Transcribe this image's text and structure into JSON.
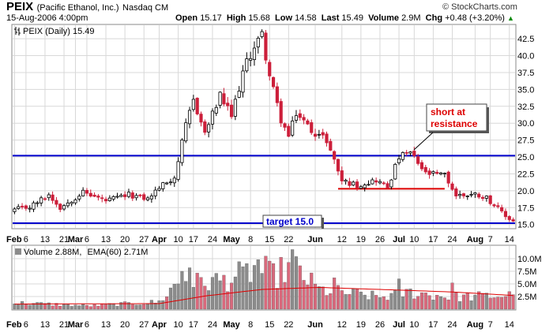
{
  "header": {
    "ticker": "PEIX",
    "company": "(Pacific Ethanol, Inc.)",
    "exchange": "Nasdaq CM",
    "date_time": "15-Aug-2006 4:00pm",
    "open_label": "Open",
    "open": "15.17",
    "high_label": "High",
    "high": "15.68",
    "low_label": "Low",
    "low": "14.58",
    "last_label": "Last",
    "last": "15.49",
    "volume_label": "Volume",
    "volume": "2.9M",
    "chg_label": "Chg",
    "chg": "+0.48 (+3.20%)",
    "chg_icon": "up-triangle-icon",
    "brand": "© StockCharts.com"
  },
  "price_panel": {
    "legend": "PEIX (Daily) 15.49"
  },
  "volume_panel": {
    "legend_prefix": "Volume 2.88M,",
    "legend_ema": "EMA(60) 2.71M"
  },
  "annotations": {
    "short": [
      "short at",
      "resistance"
    ],
    "target": "target 15.0"
  },
  "colors": {
    "up": "#ffffff",
    "down": "#cc1f3a",
    "vol_up": "#8c8c8c",
    "vol_down": "#d9697c",
    "ema": "#dd0000",
    "blue_line": "#0000cc",
    "red_line": "#dd0000",
    "grid": "#d8d8d8"
  },
  "chart_data": [
    {
      "type": "candlestick",
      "title": "PEIX (Daily) 15.49",
      "ylim": [
        14.5,
        44.5
      ],
      "y_ticks": [
        15,
        17.5,
        20,
        22.5,
        25,
        27.5,
        30,
        32.5,
        35,
        37.5,
        40,
        42.5
      ],
      "y_tick_labels": [
        "15.0",
        "17.5",
        "20.0",
        "22.5",
        "25.0",
        "27.5",
        "30.0",
        "32.5",
        "35.0",
        "37.5",
        "40.0",
        "42.5"
      ],
      "x_ticks": [
        {
          "label": "Feb",
          "idx": 0,
          "bold": true
        },
        {
          "label": "6",
          "idx": 3,
          "bold": false
        },
        {
          "label": "13",
          "idx": 8,
          "bold": false
        },
        {
          "label": "21",
          "idx": 13,
          "bold": false
        },
        {
          "label": "Mar",
          "idx": 16,
          "bold": true
        },
        {
          "label": "6",
          "idx": 19,
          "bold": false
        },
        {
          "label": "13",
          "idx": 24,
          "bold": false
        },
        {
          "label": "20",
          "idx": 29,
          "bold": false
        },
        {
          "label": "27",
          "idx": 34,
          "bold": false
        },
        {
          "label": "Apr",
          "idx": 38,
          "bold": true
        },
        {
          "label": "10",
          "idx": 43,
          "bold": false
        },
        {
          "label": "17",
          "idx": 47,
          "bold": false
        },
        {
          "label": "24",
          "idx": 52,
          "bold": false
        },
        {
          "label": "May",
          "idx": 57,
          "bold": true
        },
        {
          "label": "8",
          "idx": 62,
          "bold": false
        },
        {
          "label": "15",
          "idx": 67,
          "bold": false
        },
        {
          "label": "22",
          "idx": 72,
          "bold": false
        },
        {
          "label": "Jun",
          "idx": 79,
          "bold": true
        },
        {
          "label": "12",
          "idx": 86,
          "bold": false
        },
        {
          "label": "19",
          "idx": 91,
          "bold": false
        },
        {
          "label": "26",
          "idx": 96,
          "bold": false
        },
        {
          "label": "Jul",
          "idx": 101,
          "bold": true
        },
        {
          "label": "10",
          "idx": 105,
          "bold": false
        },
        {
          "label": "17",
          "idx": 110,
          "bold": false
        },
        {
          "label": "24",
          "idx": 115,
          "bold": false
        },
        {
          "label": "Aug",
          "idx": 121,
          "bold": true
        },
        {
          "label": "7",
          "idx": 125,
          "bold": false
        },
        {
          "label": "14",
          "idx": 130,
          "bold": false
        }
      ],
      "bar_count": 132,
      "lines": [
        {
          "kind": "horizontal",
          "y": 25.2,
          "from_idx": 0,
          "to_idx": 131,
          "color": "#0000cc"
        },
        {
          "kind": "horizontal",
          "y": 15.2,
          "from_idx": 0,
          "to_idx": 131,
          "color": "#0000cc"
        },
        {
          "kind": "horizontal",
          "y": 20.3,
          "from_idx": 85,
          "to_idx": 113,
          "color": "#dd0000"
        }
      ],
      "anchors": [
        {
          "idx": 0,
          "close": 17.2
        },
        {
          "idx": 4,
          "close": 17.6
        },
        {
          "idx": 9,
          "close": 19.4
        },
        {
          "idx": 12,
          "close": 17.5
        },
        {
          "idx": 18,
          "close": 19.8
        },
        {
          "idx": 24,
          "close": 18.5
        },
        {
          "idx": 30,
          "close": 19.4
        },
        {
          "idx": 35,
          "close": 18.8
        },
        {
          "idx": 38,
          "close": 20.5
        },
        {
          "idx": 42,
          "close": 22.0
        },
        {
          "idx": 45,
          "close": 29.5
        },
        {
          "idx": 47,
          "close": 33.5
        },
        {
          "idx": 50,
          "close": 28.5
        },
        {
          "idx": 54,
          "close": 34.0
        },
        {
          "idx": 57,
          "close": 31.0
        },
        {
          "idx": 60,
          "close": 37.5
        },
        {
          "idx": 63,
          "close": 41.5
        },
        {
          "idx": 65,
          "close": 43.0
        },
        {
          "idx": 67,
          "close": 37.0
        },
        {
          "idx": 70,
          "close": 30.5
        },
        {
          "idx": 72,
          "close": 28.0
        },
        {
          "idx": 74,
          "close": 31.5
        },
        {
          "idx": 78,
          "close": 29.0
        },
        {
          "idx": 82,
          "close": 27.5
        },
        {
          "idx": 86,
          "close": 21.5
        },
        {
          "idx": 90,
          "close": 20.8
        },
        {
          "idx": 95,
          "close": 21.6
        },
        {
          "idx": 98,
          "close": 20.5
        },
        {
          "idx": 101,
          "close": 25.0
        },
        {
          "idx": 104,
          "close": 25.6
        },
        {
          "idx": 108,
          "close": 22.5
        },
        {
          "idx": 113,
          "close": 22.3
        },
        {
          "idx": 116,
          "close": 19.3
        },
        {
          "idx": 121,
          "close": 19.5
        },
        {
          "idx": 124,
          "close": 19.0
        },
        {
          "idx": 129,
          "close": 16.2
        },
        {
          "idx": 131,
          "close": 15.49
        }
      ]
    },
    {
      "type": "bar",
      "title": "Volume 2.88M, EMA(60) 2.71M",
      "ylim": [
        0,
        12.5
      ],
      "y_ticks": [
        2.5,
        5.0,
        7.5,
        10.0
      ],
      "y_tick_labels": [
        "2.5M",
        "5.0M",
        "7.5M",
        "10.0M"
      ],
      "series": [
        {
          "name": "Volume",
          "unit": "M",
          "note": "daily volume bars, values approximated"
        },
        {
          "name": "EMA(60)",
          "unit": "M",
          "last": 2.71
        }
      ],
      "volume_anchors": [
        {
          "idx": 0,
          "v": 1.3
        },
        {
          "idx": 20,
          "v": 0.7
        },
        {
          "idx": 38,
          "v": 1.5
        },
        {
          "idx": 44,
          "v": 6.5
        },
        {
          "idx": 48,
          "v": 5.5
        },
        {
          "idx": 55,
          "v": 6.0
        },
        {
          "idx": 63,
          "v": 8.0
        },
        {
          "idx": 68,
          "v": 7.0
        },
        {
          "idx": 73,
          "v": 9.0
        },
        {
          "idx": 80,
          "v": 4.0
        },
        {
          "idx": 86,
          "v": 3.5
        },
        {
          "idx": 96,
          "v": 2.5
        },
        {
          "idx": 104,
          "v": 3.5
        },
        {
          "idx": 115,
          "v": 2.5
        },
        {
          "idx": 131,
          "v": 2.88
        }
      ],
      "volume_spikes": [
        {
          "idx": 44,
          "v": 7.5
        },
        {
          "idx": 46,
          "v": 8.2
        },
        {
          "idx": 60,
          "v": 8.4
        },
        {
          "idx": 64,
          "v": 9.8
        },
        {
          "idx": 66,
          "v": 10.5
        },
        {
          "idx": 73,
          "v": 11.8
        },
        {
          "idx": 75,
          "v": 8.6
        },
        {
          "idx": 84,
          "v": 6.2
        },
        {
          "idx": 101,
          "v": 6.0
        },
        {
          "idx": 115,
          "v": 5.2
        }
      ],
      "ema_anchors": [
        {
          "idx": 0,
          "v": 1.0
        },
        {
          "idx": 38,
          "v": 1.1
        },
        {
          "idx": 50,
          "v": 2.6
        },
        {
          "idx": 65,
          "v": 3.9
        },
        {
          "idx": 80,
          "v": 4.3
        },
        {
          "idx": 100,
          "v": 3.8
        },
        {
          "idx": 115,
          "v": 3.4
        },
        {
          "idx": 131,
          "v": 2.71
        }
      ]
    }
  ]
}
